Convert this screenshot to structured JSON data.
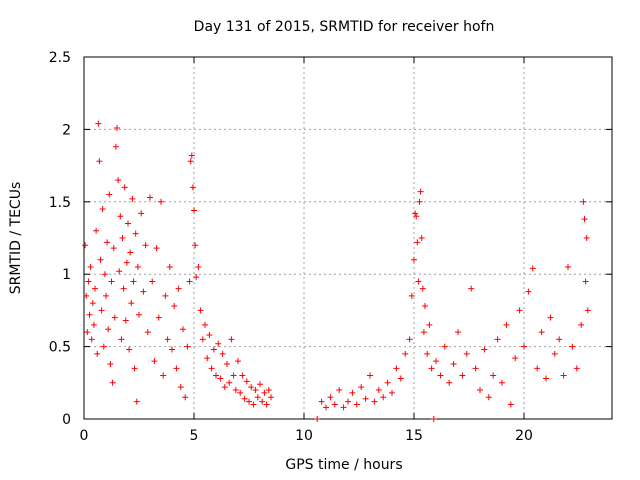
{
  "chart_data": {
    "type": "scatter",
    "title": "Day 131 of 2015, SRMTID for receiver hofn",
    "xlabel": "GPS time / hours",
    "ylabel": "SRMTID / TECUs",
    "xlim": [
      0,
      24
    ],
    "ylim": [
      0,
      2.5
    ],
    "xticks": [
      0,
      5,
      10,
      15,
      20
    ],
    "xtick_labels": [
      "0",
      "5",
      "10",
      "15",
      "20"
    ],
    "yticks": [
      0,
      0.5,
      1,
      1.5,
      2,
      2.5
    ],
    "ytick_labels": [
      "0",
      "0.5",
      "1",
      "1.5",
      "2",
      "2.5"
    ],
    "grid": true,
    "marker": "plus",
    "series": [
      {
        "name": "SRMTID",
        "color": "#ff0000",
        "points": [
          [
            0.05,
            1.2
          ],
          [
            0.1,
            0.85
          ],
          [
            0.15,
            0.6
          ],
          [
            0.2,
            0.95
          ],
          [
            0.25,
            0.72
          ],
          [
            0.3,
            1.05
          ],
          [
            0.35,
            0.55
          ],
          [
            0.4,
            0.8
          ],
          [
            0.45,
            0.65
          ],
          [
            0.5,
            0.9
          ],
          [
            0.55,
            1.3
          ],
          [
            0.6,
            0.45
          ],
          [
            0.65,
            2.04
          ],
          [
            0.7,
            1.78
          ],
          [
            0.75,
            1.1
          ],
          [
            0.8,
            0.75
          ],
          [
            0.85,
            1.45
          ],
          [
            0.9,
            0.5
          ],
          [
            0.95,
            1.0
          ],
          [
            1.0,
            0.85
          ],
          [
            1.05,
            1.22
          ],
          [
            1.1,
            0.62
          ],
          [
            1.15,
            1.55
          ],
          [
            1.2,
            0.38
          ],
          [
            1.25,
            0.95
          ],
          [
            1.3,
            0.25
          ],
          [
            1.35,
            1.18
          ],
          [
            1.4,
            0.7
          ],
          [
            1.45,
            1.88
          ],
          [
            1.5,
            2.01
          ],
          [
            1.55,
            1.65
          ],
          [
            1.6,
            1.02
          ],
          [
            1.65,
            1.4
          ],
          [
            1.7,
            0.55
          ],
          [
            1.75,
            1.25
          ],
          [
            1.8,
            0.9
          ],
          [
            1.85,
            1.6
          ],
          [
            1.9,
            0.68
          ],
          [
            1.95,
            1.08
          ],
          [
            2.0,
            1.35
          ],
          [
            2.05,
            0.48
          ],
          [
            2.1,
            1.15
          ],
          [
            2.15,
            0.8
          ],
          [
            2.2,
            1.52
          ],
          [
            2.25,
            0.95
          ],
          [
            2.3,
            0.35
          ],
          [
            2.35,
            1.28
          ],
          [
            2.4,
            0.12
          ],
          [
            2.45,
            1.05
          ],
          [
            2.5,
            0.72
          ],
          [
            2.6,
            1.42
          ],
          [
            2.7,
            0.88
          ],
          [
            2.8,
            1.2
          ],
          [
            2.9,
            0.6
          ],
          [
            3.0,
            1.53
          ],
          [
            3.1,
            0.95
          ],
          [
            3.2,
            0.4
          ],
          [
            3.3,
            1.18
          ],
          [
            3.4,
            0.7
          ],
          [
            3.5,
            1.5
          ],
          [
            3.6,
            0.3
          ],
          [
            3.7,
            0.85
          ],
          [
            3.8,
            0.55
          ],
          [
            3.9,
            1.05
          ],
          [
            4.0,
            0.48
          ],
          [
            4.1,
            0.78
          ],
          [
            4.2,
            0.35
          ],
          [
            4.3,
            0.9
          ],
          [
            4.4,
            0.22
          ],
          [
            4.5,
            0.62
          ],
          [
            4.6,
            0.15
          ],
          [
            4.7,
            0.5
          ],
          [
            4.8,
            0.95
          ],
          [
            4.85,
            1.78
          ],
          [
            4.9,
            1.82
          ],
          [
            4.95,
            1.6
          ],
          [
            5.0,
            1.44
          ],
          [
            5.05,
            1.2
          ],
          [
            5.1,
            0.98
          ],
          [
            5.2,
            1.05
          ],
          [
            5.3,
            0.75
          ],
          [
            5.4,
            0.55
          ],
          [
            5.5,
            0.65
          ],
          [
            5.6,
            0.42
          ],
          [
            5.7,
            0.58
          ],
          [
            5.8,
            0.35
          ],
          [
            5.9,
            0.48
          ],
          [
            6.0,
            0.3
          ],
          [
            6.1,
            0.52
          ],
          [
            6.2,
            0.28
          ],
          [
            6.3,
            0.45
          ],
          [
            6.4,
            0.22
          ],
          [
            6.5,
            0.38
          ],
          [
            6.6,
            0.25
          ],
          [
            6.7,
            0.55
          ],
          [
            6.8,
            0.3
          ],
          [
            6.9,
            0.2
          ],
          [
            7.0,
            0.4
          ],
          [
            7.1,
            0.18
          ],
          [
            7.2,
            0.3
          ],
          [
            7.3,
            0.14
          ],
          [
            7.4,
            0.26
          ],
          [
            7.5,
            0.12
          ],
          [
            7.6,
            0.22
          ],
          [
            7.7,
            0.1
          ],
          [
            7.8,
            0.2
          ],
          [
            7.9,
            0.15
          ],
          [
            8.0,
            0.24
          ],
          [
            8.1,
            0.12
          ],
          [
            8.2,
            0.18
          ],
          [
            8.3,
            0.1
          ],
          [
            8.4,
            0.2
          ],
          [
            8.5,
            0.15
          ],
          [
            10.6,
            0.0
          ],
          [
            10.8,
            0.12
          ],
          [
            11.0,
            0.08
          ],
          [
            11.2,
            0.15
          ],
          [
            11.4,
            0.1
          ],
          [
            11.6,
            0.2
          ],
          [
            11.8,
            0.08
          ],
          [
            12.0,
            0.12
          ],
          [
            12.2,
            0.18
          ],
          [
            12.4,
            0.1
          ],
          [
            12.6,
            0.22
          ],
          [
            12.8,
            0.14
          ],
          [
            13.0,
            0.3
          ],
          [
            13.2,
            0.12
          ],
          [
            13.4,
            0.2
          ],
          [
            13.6,
            0.15
          ],
          [
            13.8,
            0.25
          ],
          [
            14.0,
            0.18
          ],
          [
            14.2,
            0.35
          ],
          [
            14.4,
            0.28
          ],
          [
            14.6,
            0.45
          ],
          [
            14.8,
            0.55
          ],
          [
            14.9,
            0.85
          ],
          [
            15.0,
            1.1
          ],
          [
            15.05,
            1.42
          ],
          [
            15.1,
            1.4
          ],
          [
            15.15,
            1.22
          ],
          [
            15.2,
            0.95
          ],
          [
            15.25,
            1.5
          ],
          [
            15.3,
            1.57
          ],
          [
            15.35,
            1.25
          ],
          [
            15.4,
            0.9
          ],
          [
            15.45,
            0.6
          ],
          [
            15.5,
            0.78
          ],
          [
            15.6,
            0.45
          ],
          [
            15.7,
            0.65
          ],
          [
            15.8,
            0.35
          ],
          [
            15.9,
            0.0
          ],
          [
            16.0,
            0.4
          ],
          [
            16.2,
            0.3
          ],
          [
            16.4,
            0.5
          ],
          [
            16.6,
            0.25
          ],
          [
            16.8,
            0.38
          ],
          [
            17.0,
            0.6
          ],
          [
            17.2,
            0.3
          ],
          [
            17.4,
            0.45
          ],
          [
            17.6,
            0.9
          ],
          [
            17.8,
            0.35
          ],
          [
            18.0,
            0.2
          ],
          [
            18.2,
            0.48
          ],
          [
            18.4,
            0.15
          ],
          [
            18.6,
            0.3
          ],
          [
            18.8,
            0.55
          ],
          [
            19.0,
            0.25
          ],
          [
            19.2,
            0.65
          ],
          [
            19.4,
            0.1
          ],
          [
            19.6,
            0.42
          ],
          [
            19.8,
            0.75
          ],
          [
            20.0,
            0.5
          ],
          [
            20.2,
            0.88
          ],
          [
            20.4,
            1.04
          ],
          [
            20.6,
            0.35
          ],
          [
            20.8,
            0.6
          ],
          [
            21.0,
            0.28
          ],
          [
            21.2,
            0.7
          ],
          [
            21.4,
            0.45
          ],
          [
            21.6,
            0.55
          ],
          [
            21.8,
            0.3
          ],
          [
            22.0,
            1.05
          ],
          [
            22.2,
            0.5
          ],
          [
            22.4,
            0.35
          ],
          [
            22.6,
            0.65
          ],
          [
            22.7,
            1.5
          ],
          [
            22.75,
            1.38
          ],
          [
            22.8,
            0.95
          ],
          [
            22.85,
            1.25
          ],
          [
            22.9,
            0.75
          ]
        ]
      }
    ]
  }
}
